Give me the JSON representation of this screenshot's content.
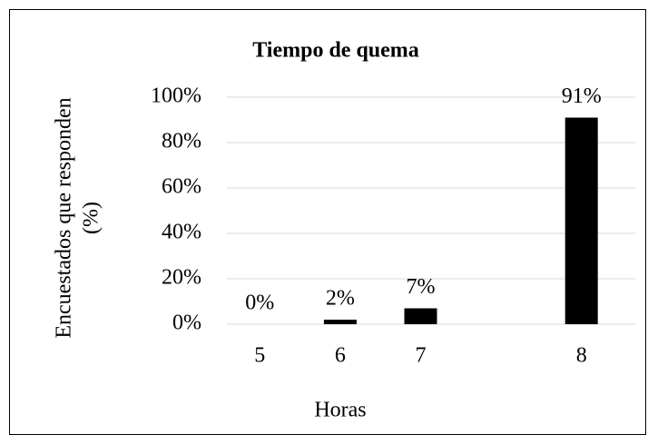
{
  "chart_data": {
    "type": "bar",
    "title": "Tiempo de quema",
    "categories": [
      "5",
      "6",
      "7",
      null,
      "8"
    ],
    "values": [
      0,
      2,
      7,
      null,
      91
    ],
    "value_labels": [
      "0%",
      "2%",
      "7%",
      null,
      "91%"
    ],
    "color": "#000000",
    "xlabel": "Horas",
    "ylabel": [
      "Encuestados que responden",
      "(%)"
    ],
    "ylim": [
      0,
      100
    ],
    "yticks": [
      {
        "value": 0,
        "label": "0%"
      },
      {
        "value": 20,
        "label": "20%"
      },
      {
        "value": 40,
        "label": "40%"
      },
      {
        "value": 60,
        "label": "60%"
      },
      {
        "value": 80,
        "label": "80%"
      },
      {
        "value": 100,
        "label": "100%"
      }
    ],
    "grid": true
  }
}
